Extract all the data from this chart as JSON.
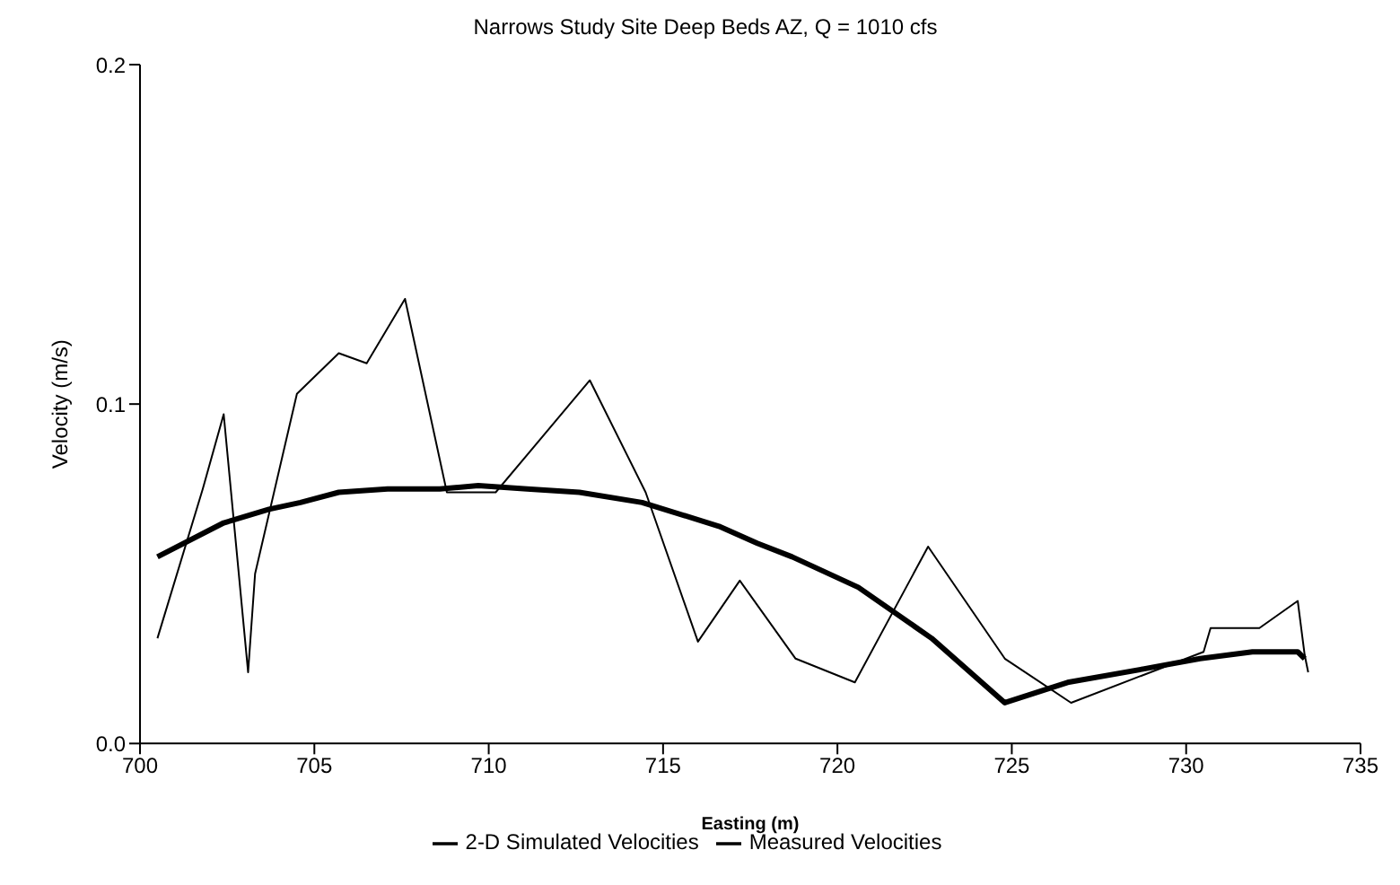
{
  "chart_data": {
    "type": "line",
    "title": "Narrows Study Site Deep Beds AZ, Q = 1010 cfs",
    "xlabel": "Easting (m)",
    "ylabel": "Velocity (m/s)",
    "xlim": [
      700,
      735
    ],
    "xticks": [
      700,
      705,
      710,
      715,
      720,
      725,
      730,
      735
    ],
    "ylim": [
      0,
      0.2
    ],
    "yticks": [
      {
        "value": 0,
        "label": "0.0"
      },
      {
        "value": 0.1,
        "label": "0.1"
      },
      {
        "value": 0.2,
        "label": "0.2"
      }
    ],
    "grid": false,
    "legend": "bottom",
    "marker": "none",
    "line_style": "solid",
    "series": [
      {
        "name": "2-D Simulated Velocities",
        "color": "#000000",
        "x": [
          700.5,
          702.4,
          703.7,
          704.6,
          705.7,
          707.1,
          708.6,
          709.7,
          711.1,
          712.6,
          714.4,
          716.6,
          717.7,
          718.7,
          720.6,
          722.7,
          724.8,
          726.6,
          728.8,
          730.4,
          731.9,
          733.2,
          733.4
        ],
        "values": [
          0.055,
          0.065,
          0.069,
          0.071,
          0.074,
          0.075,
          0.075,
          0.076,
          0.075,
          0.074,
          0.071,
          0.064,
          0.059,
          0.055,
          0.046,
          0.031,
          0.012,
          0.018,
          0.022,
          0.025,
          0.027,
          0.027,
          0.025
        ]
      },
      {
        "name": "Measured Velocities",
        "color": "#000000",
        "x": [
          700.5,
          701.8,
          702.4,
          703.1,
          703.3,
          704.5,
          705.7,
          706.5,
          707.6,
          708.8,
          710.2,
          712.9,
          714.5,
          716.0,
          717.2,
          718.8,
          720.5,
          722.6,
          724.8,
          726.7,
          730.5,
          730.7,
          732.1,
          733.2,
          733.4,
          733.5
        ],
        "values": [
          0.031,
          0.075,
          0.097,
          0.021,
          0.05,
          0.103,
          0.115,
          0.112,
          0.131,
          0.074,
          0.074,
          0.107,
          0.074,
          0.03,
          0.048,
          0.025,
          0.018,
          0.058,
          0.025,
          0.012,
          0.027,
          0.034,
          0.034,
          0.042,
          0.026,
          0.021
        ]
      }
    ]
  }
}
